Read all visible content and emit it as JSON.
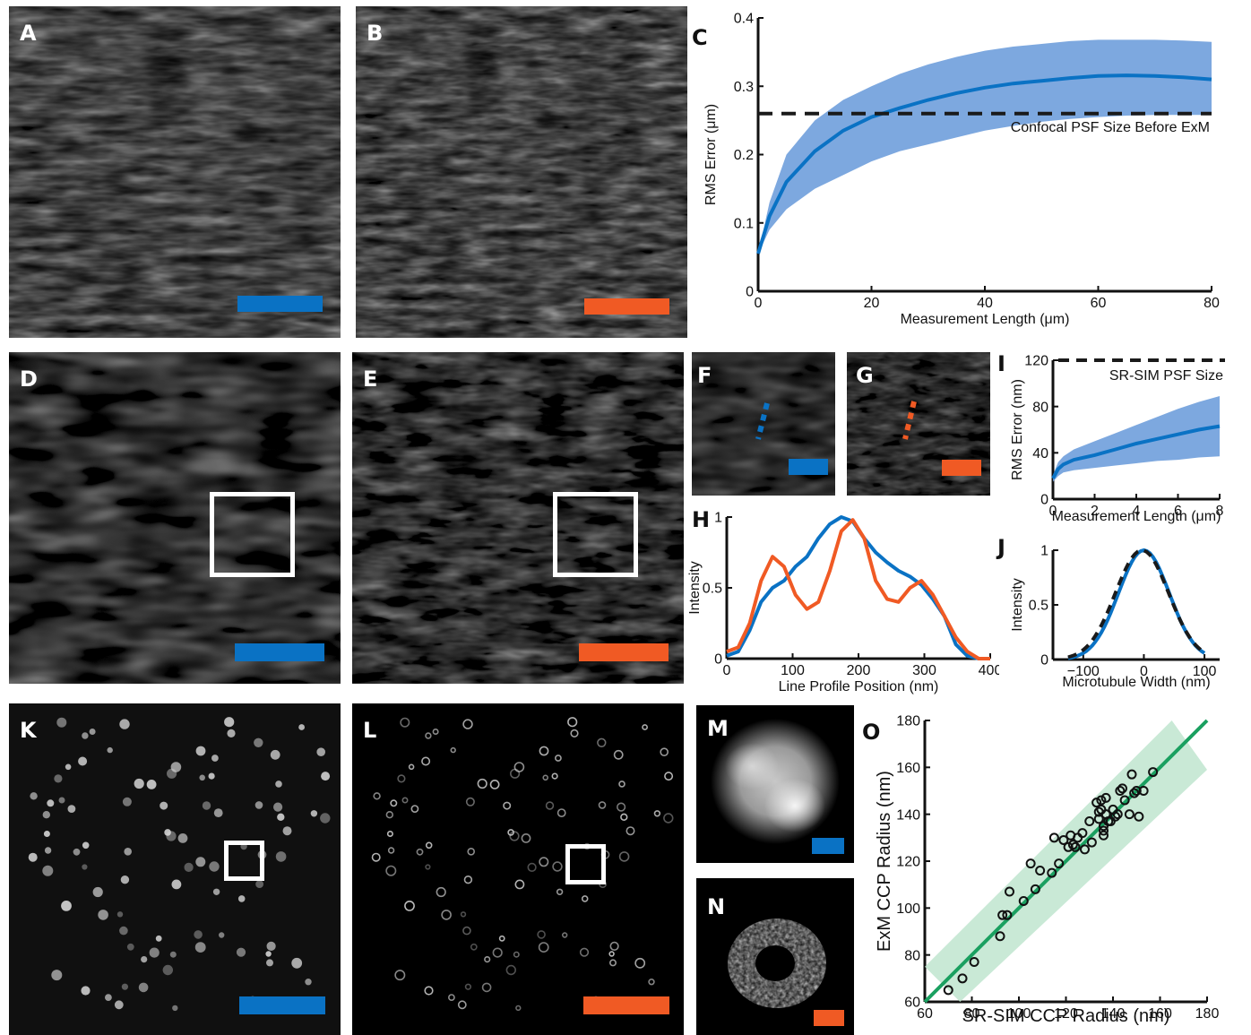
{
  "colors": {
    "expansion": "#0a72c4",
    "post_expansion": "#f05a24",
    "band": "#6f9fdc",
    "ccp_fit": "#1aa060",
    "ccp_band": "#bfe5cf",
    "dashed": "#1a1a1a"
  },
  "panels": {
    "A": "A",
    "B": "B",
    "C": "C",
    "D": "D",
    "E": "E",
    "F": "F",
    "G": "G",
    "H": "H",
    "I": "I",
    "J": "J",
    "K": "K",
    "L": "L",
    "M": "M",
    "N": "N",
    "O": "O"
  },
  "chart_data": [
    {
      "panel": "C",
      "type": "line",
      "xlabel": "Measurement Length (μm)",
      "ylabel": "RMS Error (μm)",
      "xlim": [
        0,
        80
      ],
      "ylim": [
        0,
        0.4
      ],
      "xticks": [
        "0",
        "20",
        "40",
        "60",
        "80"
      ],
      "yticks": [
        "0",
        "0.1",
        "0.2",
        "0.3",
        "0.4"
      ],
      "annotation": "Confocal PSF Size Before ExM",
      "reference_line": 0.26,
      "series": [
        {
          "x": [
            0,
            2,
            5,
            10,
            15,
            20,
            25,
            30,
            35,
            40,
            45,
            50,
            55,
            60,
            65,
            70,
            75,
            80
          ],
          "y": [
            0.055,
            0.11,
            0.16,
            0.205,
            0.235,
            0.255,
            0.268,
            0.28,
            0.29,
            0.298,
            0.304,
            0.308,
            0.312,
            0.315,
            0.316,
            0.315,
            0.313,
            0.31
          ],
          "lower": [
            0.055,
            0.09,
            0.12,
            0.15,
            0.17,
            0.19,
            0.205,
            0.215,
            0.225,
            0.235,
            0.242,
            0.248,
            0.252,
            0.255,
            0.257,
            0.258,
            0.258,
            0.258
          ],
          "upper": [
            0.055,
            0.13,
            0.2,
            0.25,
            0.28,
            0.3,
            0.318,
            0.332,
            0.343,
            0.352,
            0.358,
            0.362,
            0.366,
            0.368,
            0.368,
            0.368,
            0.367,
            0.365
          ]
        }
      ]
    },
    {
      "panel": "H",
      "type": "line",
      "xlabel": "Line Profile Position (nm)",
      "ylabel": "Intensity",
      "xlim": [
        0,
        460
      ],
      "ylim": [
        0,
        1
      ],
      "xticks": [
        "0",
        "100",
        "200",
        "300",
        "400"
      ],
      "yticks": [
        "0",
        "0.5",
        "1"
      ],
      "series": [
        {
          "color": "expansion",
          "x": [
            0,
            20,
            40,
            60,
            80,
            100,
            120,
            140,
            160,
            180,
            200,
            220,
            240,
            260,
            280,
            300,
            320,
            340,
            360,
            380,
            400,
            420,
            440,
            460
          ],
          "y": [
            0.02,
            0.05,
            0.2,
            0.4,
            0.5,
            0.55,
            0.65,
            0.72,
            0.85,
            0.95,
            1.0,
            0.97,
            0.85,
            0.75,
            0.68,
            0.62,
            0.58,
            0.52,
            0.42,
            0.3,
            0.1,
            0.02,
            0.0,
            0.0
          ]
        },
        {
          "color": "post_expansion",
          "x": [
            0,
            20,
            40,
            60,
            80,
            100,
            120,
            140,
            160,
            180,
            200,
            220,
            240,
            260,
            280,
            300,
            320,
            340,
            360,
            380,
            400,
            420,
            440,
            460
          ],
          "y": [
            0.05,
            0.08,
            0.25,
            0.55,
            0.72,
            0.65,
            0.45,
            0.35,
            0.4,
            0.62,
            0.9,
            0.98,
            0.85,
            0.55,
            0.42,
            0.4,
            0.5,
            0.55,
            0.45,
            0.3,
            0.15,
            0.05,
            0.0,
            0.0
          ]
        }
      ]
    },
    {
      "panel": "I",
      "type": "line",
      "xlabel": "Measurement Length (μm)",
      "ylabel": "RMS Error (nm)",
      "xlim": [
        0,
        8
      ],
      "ylim": [
        0,
        120
      ],
      "xticks": [
        "0",
        "2",
        "4",
        "6",
        "8"
      ],
      "yticks": [
        "0",
        "40",
        "80",
        "120"
      ],
      "annotation": "SR-SIM PSF Size",
      "reference_line": 120,
      "series": [
        {
          "x": [
            0,
            0.25,
            0.5,
            1,
            2,
            3,
            4,
            5,
            6,
            7,
            8
          ],
          "y": [
            18,
            26,
            30,
            34,
            38,
            43,
            48,
            52,
            56,
            60,
            63
          ],
          "lower": [
            15,
            20,
            23,
            25,
            27,
            29,
            31,
            33,
            34,
            36,
            37
          ],
          "upper": [
            21,
            32,
            37,
            43,
            50,
            57,
            64,
            71,
            78,
            84,
            89
          ]
        }
      ]
    },
    {
      "panel": "J",
      "type": "line",
      "xlabel": "Microtubule Width (nm)",
      "ylabel": "Intensity",
      "xlim": [
        -150,
        125
      ],
      "ylim": [
        0,
        1
      ],
      "xticks": [
        "−100",
        "0",
        "100"
      ],
      "yticks": [
        "0",
        "0.5",
        "1"
      ],
      "series": [
        {
          "color": "expansion",
          "gaussian": {
            "mu": 0,
            "sigma": 42
          }
        },
        {
          "color": "dashed",
          "gaussian": {
            "mu": -3,
            "sigma": 44
          }
        }
      ]
    },
    {
      "panel": "O",
      "type": "scatter",
      "xlabel": "SR-SIM CCP Radius (nm)",
      "ylabel": "ExM CCP Radius (nm)",
      "xlim": [
        60,
        180
      ],
      "ylim": [
        60,
        180
      ],
      "xticks": [
        "60",
        "80",
        "100",
        "120",
        "140",
        "160",
        "180"
      ],
      "yticks": [
        "60",
        "80",
        "100",
        "120",
        "140",
        "160",
        "180"
      ],
      "fit_line": [
        [
          60,
          60
        ],
        [
          180,
          180
        ]
      ],
      "band_halfwidth": 15,
      "points": [
        [
          70,
          65
        ],
        [
          76,
          70
        ],
        [
          81,
          77
        ],
        [
          92,
          88
        ],
        [
          93,
          97
        ],
        [
          95,
          97
        ],
        [
          96,
          107
        ],
        [
          102,
          103
        ],
        [
          105,
          119
        ],
        [
          107,
          108
        ],
        [
          109,
          116
        ],
        [
          114,
          115
        ],
        [
          115,
          130
        ],
        [
          117,
          119
        ],
        [
          119,
          129
        ],
        [
          121,
          126
        ],
        [
          122,
          131
        ],
        [
          123,
          127
        ],
        [
          124,
          126
        ],
        [
          125,
          130
        ],
        [
          127,
          132
        ],
        [
          128,
          125
        ],
        [
          130,
          137
        ],
        [
          131,
          128
        ],
        [
          133,
          145
        ],
        [
          134,
          141
        ],
        [
          134,
          138
        ],
        [
          135,
          142
        ],
        [
          135,
          146
        ],
        [
          136,
          135
        ],
        [
          136,
          131
        ],
        [
          137,
          147
        ],
        [
          137,
          140
        ],
        [
          138,
          137
        ],
        [
          139,
          137
        ],
        [
          140,
          142
        ],
        [
          141,
          139
        ],
        [
          142,
          140
        ],
        [
          143,
          150
        ],
        [
          144,
          151
        ],
        [
          145,
          146
        ],
        [
          147,
          140
        ],
        [
          148,
          157
        ],
        [
          149,
          149
        ],
        [
          150,
          150
        ],
        [
          151,
          139
        ],
        [
          153,
          150
        ],
        [
          157,
          158
        ],
        [
          136,
          133
        ]
      ]
    }
  ]
}
